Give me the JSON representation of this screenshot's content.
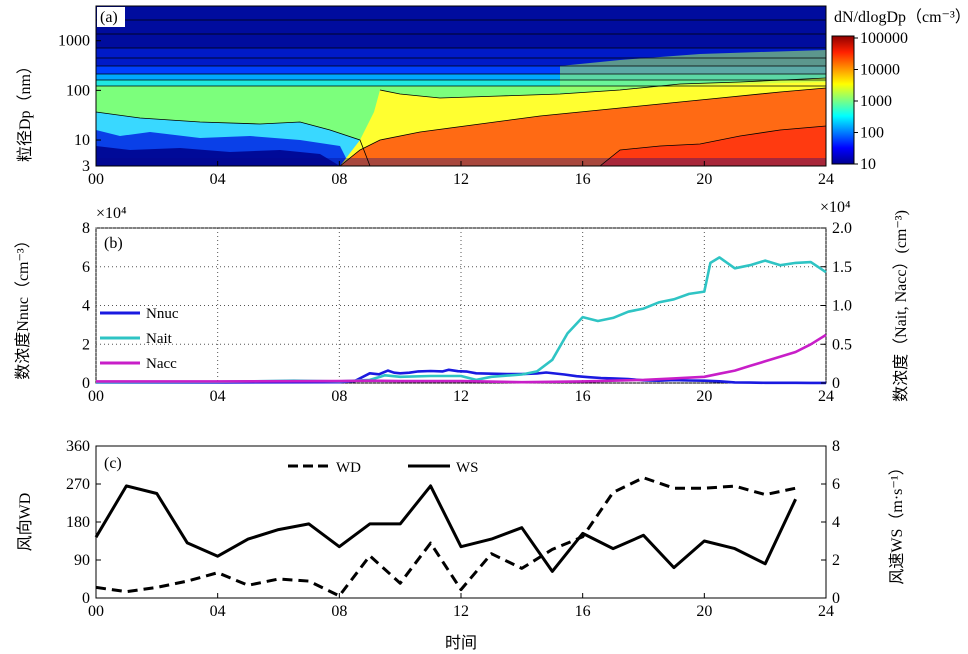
{
  "panel_a": {
    "panel_label": "(a)",
    "y_label": "粒径Dp（nm）",
    "y_ticks": [
      "3",
      "10",
      "100",
      "1000"
    ],
    "x_ticks": [
      "00",
      "04",
      "08",
      "12",
      "16",
      "20",
      "24"
    ],
    "colorbar_title": "dN/dlogDp（cm⁻³）",
    "colorbar_ticks": [
      "10",
      "100",
      "1000",
      "10000",
      "100000"
    ]
  },
  "panel_b": {
    "panel_label": "(b)",
    "left_multiplier": "×10⁴",
    "right_multiplier": "×10⁴",
    "y_label_left": "数浓度Nnuc（cm⁻³）",
    "y_label_right": "数浓度（Nait, Nacc）(cm⁻³)",
    "left_ticks": [
      "0",
      "2",
      "4",
      "6",
      "8"
    ],
    "right_ticks": [
      "0",
      "0.5",
      "1.0",
      "1.5",
      "2.0"
    ],
    "x_ticks": [
      "00",
      "04",
      "08",
      "12",
      "16",
      "20",
      "24"
    ]
  },
  "panel_c": {
    "panel_label": "(c)",
    "y_label_left": "风向WD",
    "y_label_right": "风速WS（m·s⁻¹）",
    "left_ticks": [
      "0",
      "90",
      "180",
      "270",
      "360"
    ],
    "right_ticks": [
      "0",
      "2",
      "4",
      "6",
      "8"
    ],
    "x_ticks": [
      "00",
      "04",
      "08",
      "12",
      "16",
      "20",
      "24"
    ],
    "x_label": "时间"
  },
  "colors": {
    "nnuc": "#1a1ae0",
    "nait": "#2fc4c4",
    "nacc": "#c81ec8",
    "line_black": "#000000"
  },
  "chart_data": [
    {
      "type": "heatmap",
      "title": "",
      "xlabel": "",
      "ylabel": "粒径Dp（nm）",
      "x_range": [
        0,
        24
      ],
      "y_range_nm": [
        3,
        5000
      ],
      "y_scale": "log",
      "color_scale": "log",
      "color_range": [
        10,
        100000
      ],
      "colorbar_label": "dN/dlogDp（cm⁻³）",
      "description_values": {
        "banana_start_hour": 9,
        "banana_diameter_start_nm": 5,
        "banana_diameter_end_nm": 90,
        "banana_end_hour": 24
      }
    },
    {
      "type": "line",
      "xlabel": "",
      "ylabel_left": "数浓度Nnuc（cm⁻³）",
      "ylabel_right": "数浓度（Nait, Nacc）(cm⁻³)",
      "x_range": [
        0,
        24
      ],
      "ylim_left": [
        0,
        80000
      ],
      "ylim_right": [
        0,
        20000
      ],
      "grid": true,
      "legend_position": "left",
      "series": [
        {
          "name": "Nnuc",
          "axis": "left",
          "x": [
            0,
            4,
            8,
            8.5,
            9.0,
            9.3,
            9.6,
            9.8,
            10.0,
            10.3,
            10.6,
            11.0,
            11.4,
            11.6,
            11.9,
            12.2,
            12.5,
            13.0,
            13.5,
            14.0,
            14.5,
            14.8,
            15.1,
            15.4,
            15.8,
            16.2,
            16.6,
            17.0,
            17.5,
            18.0,
            18.5,
            19.0,
            19.5,
            20.0,
            20.5,
            21.0,
            21.5,
            22.0,
            22.5,
            23.0,
            23.5,
            24.0
          ],
          "values": [
            300,
            300,
            400,
            1000,
            5000,
            4500,
            6400,
            5300,
            5000,
            5300,
            6000,
            6200,
            6000,
            6800,
            6100,
            5900,
            5000,
            4800,
            4600,
            4600,
            4900,
            5400,
            4900,
            4400,
            3500,
            3000,
            2600,
            2400,
            2000,
            1400,
            1200,
            1500,
            1300,
            1200,
            900,
            300,
            200,
            100,
            100,
            100,
            50,
            50
          ]
        },
        {
          "name": "Nait",
          "axis": "right",
          "x": [
            0,
            4,
            6.5,
            8,
            9,
            9.5,
            10,
            11,
            12,
            12.5,
            13,
            14,
            14.5,
            15,
            15.5,
            16,
            16.5,
            17,
            17.5,
            18,
            18.5,
            19,
            19.5,
            20,
            20.2,
            20.5,
            21,
            21.5,
            22,
            22.5,
            23,
            23.5,
            24
          ],
          "values": [
            100,
            150,
            300,
            200,
            400,
            1000,
            800,
            900,
            900,
            400,
            800,
            1100,
            1500,
            3000,
            6400,
            8500,
            8000,
            8400,
            9200,
            9600,
            10400,
            10800,
            11500,
            11800,
            15500,
            16200,
            14800,
            15200,
            15800,
            15200,
            15500,
            15600,
            14300
          ]
        },
        {
          "name": "Nacc",
          "axis": "right",
          "x": [
            0,
            4,
            8,
            9,
            10,
            12,
            14,
            16,
            18,
            19,
            20,
            20.5,
            21,
            21.5,
            22,
            22.5,
            23,
            23.5,
            24
          ],
          "values": [
            200,
            200,
            250,
            300,
            250,
            250,
            100,
            200,
            400,
            600,
            800,
            1200,
            1600,
            2200,
            2800,
            3400,
            4000,
            5000,
            6200
          ]
        }
      ]
    },
    {
      "type": "line",
      "xlabel": "时间",
      "ylabel_left": "风向WD",
      "ylabel_right": "风速WS（m·s⁻¹）",
      "x_range": [
        0,
        24
      ],
      "ylim_left": [
        0,
        360
      ],
      "ylim_right": [
        0,
        8
      ],
      "legend_position": "top",
      "series": [
        {
          "name": "WD",
          "axis": "left",
          "style": "dashed",
          "x": [
            0,
            1,
            2,
            3,
            4,
            5,
            6,
            7,
            8,
            9,
            10,
            11,
            12,
            13,
            14,
            15,
            16,
            17,
            18,
            19,
            20,
            21,
            22,
            23
          ],
          "values": [
            25,
            15,
            25,
            40,
            60,
            30,
            45,
            40,
            5,
            100,
            35,
            130,
            20,
            105,
            70,
            115,
            145,
            250,
            285,
            260,
            260,
            265,
            245,
            260
          ]
        },
        {
          "name": "WS",
          "axis": "right",
          "style": "solid",
          "x": [
            0,
            1,
            2,
            3,
            4,
            5,
            6,
            7,
            8,
            9,
            10,
            11,
            12,
            13,
            14,
            15,
            16,
            17,
            18,
            19,
            20,
            21,
            22,
            23
          ],
          "values": [
            3.2,
            5.9,
            5.5,
            2.9,
            2.2,
            3.1,
            3.6,
            3.9,
            2.7,
            3.9,
            3.9,
            5.9,
            2.7,
            3.1,
            3.7,
            1.4,
            3.4,
            2.6,
            3.3,
            1.6,
            3.0,
            2.6,
            1.8,
            5.2
          ]
        }
      ]
    }
  ]
}
